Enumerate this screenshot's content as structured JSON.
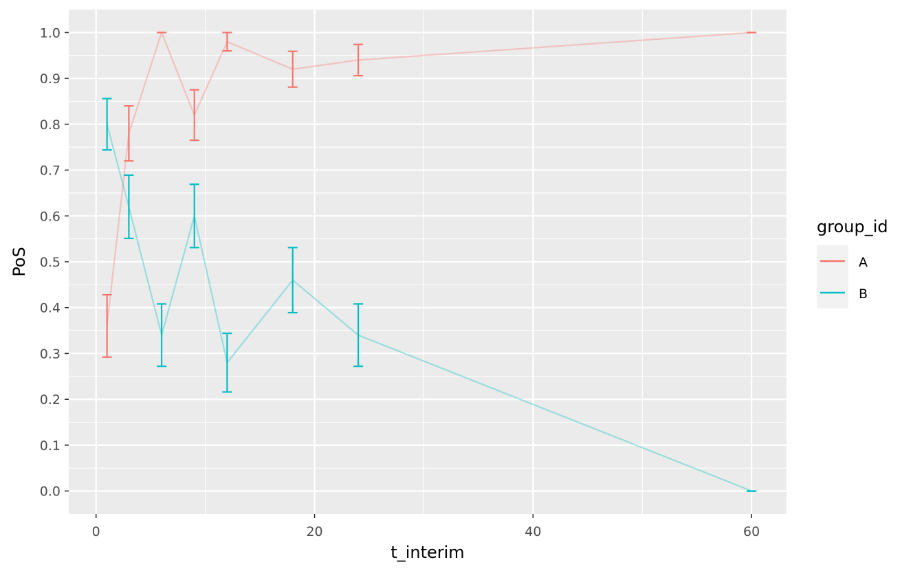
{
  "chart_data": {
    "type": "line",
    "xlabel": "t_interim",
    "ylabel": "PoS",
    "xlim": [
      -2.5,
      63.2
    ],
    "ylim": [
      -0.05,
      1.05
    ],
    "x_ticks": [
      0,
      20,
      40,
      60
    ],
    "x_tick_labels": [
      "0",
      "20",
      "40",
      "60"
    ],
    "y_ticks": [
      0.0,
      0.1,
      0.2,
      0.3,
      0.4,
      0.5,
      0.6,
      0.7,
      0.8,
      0.9,
      1.0
    ],
    "y_tick_labels": [
      "0.0",
      "0.1",
      "0.2",
      "0.3",
      "0.4",
      "0.5",
      "0.6",
      "0.7",
      "0.8",
      "0.9",
      "1.0"
    ],
    "grid": true,
    "background": "#ebebeb",
    "legend": {
      "title": "group_id",
      "position": "right",
      "entries": [
        {
          "label": "A",
          "color": "#F8766D"
        },
        {
          "label": "B",
          "color": "#00BFC4"
        }
      ]
    },
    "series": [
      {
        "name": "A",
        "color": "#F8766D",
        "x": [
          1,
          3,
          6,
          9,
          12,
          18,
          24,
          60
        ],
        "y": [
          0.36,
          0.78,
          1.0,
          0.82,
          0.98,
          0.92,
          0.94,
          1.0
        ],
        "lower": [
          0.292,
          0.72,
          1.0,
          0.765,
          0.96,
          0.881,
          0.906,
          1.0
        ],
        "upper": [
          0.428,
          0.84,
          1.0,
          0.875,
          1.0,
          0.959,
          0.974,
          1.0
        ]
      },
      {
        "name": "B",
        "color": "#00BFC4",
        "x": [
          1,
          3,
          6,
          9,
          12,
          18,
          24,
          60
        ],
        "y": [
          0.8,
          0.62,
          0.34,
          0.6,
          0.28,
          0.46,
          0.34,
          0.0
        ],
        "lower": [
          0.744,
          0.551,
          0.272,
          0.531,
          0.216,
          0.389,
          0.272,
          0.0
        ],
        "upper": [
          0.856,
          0.689,
          0.408,
          0.669,
          0.344,
          0.531,
          0.408,
          0.0
        ]
      }
    ]
  }
}
